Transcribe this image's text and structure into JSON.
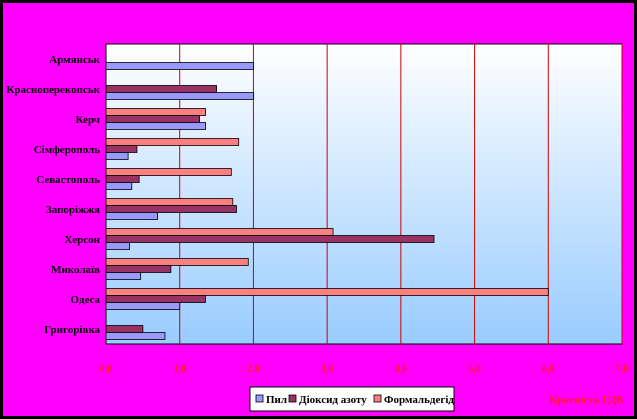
{
  "colors": {
    "frame": "#ff00ff",
    "plot_top": "#ffffff",
    "plot_bottom": "#99ccff",
    "gridline": "#cc0000",
    "tick_text": "#ff1a1a",
    "bar_outline": "#000000"
  },
  "chart_data": {
    "type": "bar",
    "orientation": "horizontal",
    "title": "",
    "xlabel": "Кратність ГДК",
    "ylabel": "",
    "xlim": [
      0,
      7
    ],
    "ticks": [
      "0,0",
      "1,0",
      "2,0",
      "3,0",
      "4,0",
      "5,0",
      "6,0",
      "7,0"
    ],
    "grid": true,
    "legend_position": "bottom",
    "categories": [
      "Армянськ",
      "Красноперекопськ",
      "Керч",
      "Сімферополь",
      "Севастополь",
      "Запоріжжя",
      "Херсон",
      "Миколаїв",
      "Одеса",
      "Григорівка"
    ],
    "series": [
      {
        "name": "Пил",
        "color": "#9999ff",
        "values": [
          2.0,
          2.0,
          1.35,
          0.3,
          0.35,
          0.7,
          0.32,
          0.47,
          1.0,
          0.8
        ]
      },
      {
        "name": "Діоксид азоту",
        "color": "#993366",
        "values": [
          null,
          1.5,
          1.27,
          0.42,
          0.45,
          1.77,
          4.45,
          0.88,
          1.35,
          0.5
        ]
      },
      {
        "name": "Формальдегід",
        "color": "#ff8080",
        "values": [
          null,
          null,
          1.35,
          1.8,
          1.7,
          1.72,
          3.08,
          1.93,
          6.0,
          null
        ]
      }
    ]
  }
}
